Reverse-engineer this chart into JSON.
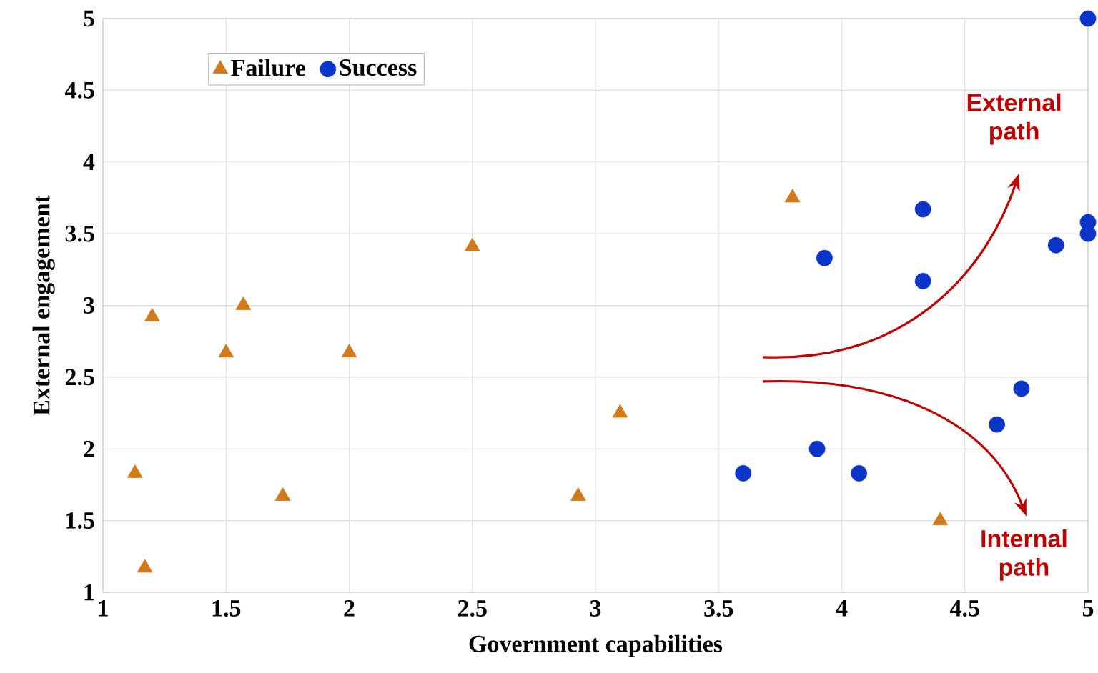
{
  "chart_data": {
    "type": "scatter",
    "xlabel": "Government capabilities",
    "ylabel": "External engagement",
    "xlim": [
      1,
      5
    ],
    "ylim": [
      1,
      5
    ],
    "xticks": [
      1,
      1.5,
      2,
      2.5,
      3,
      3.5,
      4,
      4.5,
      5
    ],
    "yticks": [
      1,
      1.5,
      2,
      2.5,
      3,
      3.5,
      4,
      4.5,
      5
    ],
    "grid": true,
    "legend": "top left",
    "series": [
      {
        "name": "Failure",
        "color": "#d07a1c",
        "marker": "triangle",
        "x": [
          1.13,
          1.17,
          1.2,
          1.5,
          1.57,
          1.73,
          2,
          2.5,
          2.93,
          3.1,
          3.8,
          4.4
        ],
        "values": [
          1.83,
          1.17,
          2.92,
          2.67,
          3,
          1.67,
          2.67,
          3.41,
          1.67,
          2.25,
          3.75,
          1.5
        ]
      },
      {
        "name": "Success",
        "color": "#0a35c8",
        "marker": "circle",
        "x": [
          5,
          4.33,
          3.93,
          4.33,
          5,
          5,
          4.87,
          4.73,
          4.63,
          3.9,
          3.6,
          4.07
        ],
        "values": [
          5,
          3.67,
          3.33,
          3.17,
          3.58,
          3.5,
          3.42,
          2.42,
          2.17,
          2,
          1.83,
          1.83
        ]
      }
    ],
    "annotations": [
      "External path",
      "Internal path"
    ]
  }
}
